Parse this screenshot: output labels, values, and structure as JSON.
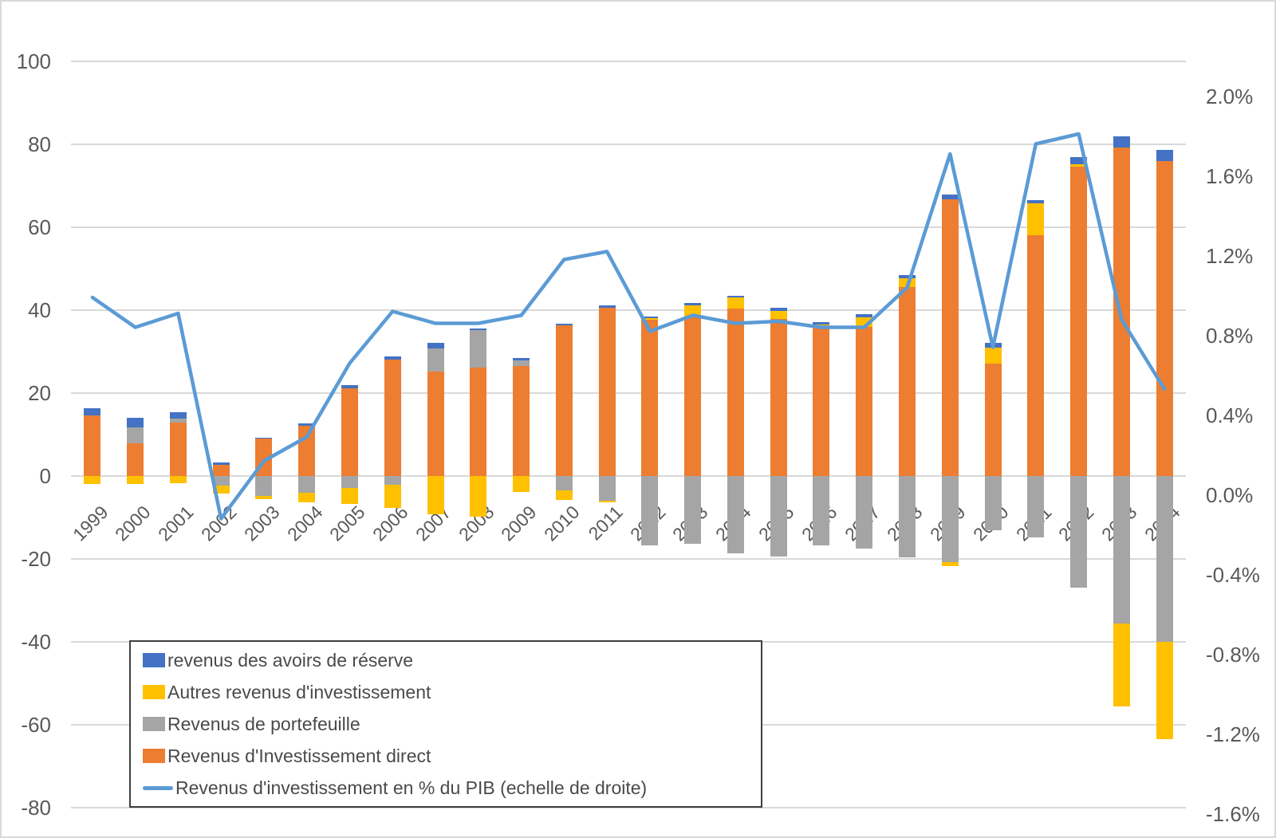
{
  "chart_data": {
    "type": "combo-stacked-bar-line",
    "categories": [
      1999,
      2000,
      2001,
      2002,
      2003,
      2004,
      2005,
      2006,
      2007,
      2008,
      2009,
      2010,
      2011,
      2012,
      2013,
      2014,
      2015,
      2016,
      2017,
      2018,
      2019,
      2020,
      2021,
      2022,
      2023,
      2024
    ],
    "series": [
      {
        "key": "direct",
        "name": "Revenus d'Investissement direct",
        "type": "bar",
        "color": "#ED7D31",
        "values": [
          14.6,
          7.9,
          12.8,
          2.6,
          9.0,
          12.2,
          21.2,
          28.0,
          25.2,
          26.2,
          26.5,
          36.4,
          40.6,
          37.7,
          38.5,
          40.4,
          37.8,
          36.3,
          36.0,
          45.5,
          66.8,
          27.2,
          58.1,
          74.6,
          79.2,
          76.0
        ]
      },
      {
        "key": "portefeuille",
        "name": "Revenus de portefeuille",
        "type": "bar",
        "color": "#A5A5A5",
        "values": [
          0,
          3.9,
          1.1,
          -2.4,
          -4.8,
          -4.0,
          -2.8,
          -2.1,
          5.5,
          9.0,
          1.4,
          -3.5,
          -6.0,
          -16.8,
          -16.3,
          -18.6,
          -19.4,
          -16.8,
          -17.5,
          -19.7,
          -20.7,
          -13.1,
          -14.8,
          -27.0,
          -35.5,
          -40.0
        ]
      },
      {
        "key": "autres",
        "name": "Autres revenus d'investissement",
        "type": "bar",
        "color": "#FFC000",
        "values": [
          -2.0,
          -1.9,
          -1.8,
          -1.9,
          -0.8,
          -2.3,
          -4.0,
          -5.5,
          -9.2,
          -9.8,
          -3.8,
          -2.2,
          -0.4,
          0.4,
          2.7,
          2.6,
          2.1,
          0.2,
          2.2,
          2.1,
          -1.0,
          3.7,
          7.6,
          0.5,
          -20.0,
          -23.5
        ]
      },
      {
        "key": "reserve",
        "name": "revenus des avoirs de réserve",
        "type": "bar",
        "color": "#4472C4",
        "values": [
          1.8,
          2.3,
          1.5,
          0.6,
          0.3,
          0.4,
          0.8,
          0.9,
          1.5,
          0.4,
          0.5,
          0.4,
          0.6,
          0.3,
          0.5,
          0.5,
          0.7,
          0.6,
          0.8,
          0.9,
          1.0,
          1.3,
          0.8,
          1.8,
          2.8,
          2.6
        ]
      },
      {
        "key": "pib_line",
        "name": "Revenus d'investissement en % du PIB (echelle de droite)",
        "type": "line",
        "axis": "right",
        "color": "#5B9BD5",
        "values": [
          0.99,
          0.84,
          0.91,
          -0.12,
          0.17,
          0.29,
          0.66,
          0.92,
          0.86,
          0.86,
          0.9,
          1.18,
          1.22,
          0.82,
          0.9,
          0.86,
          0.87,
          0.84,
          0.84,
          1.04,
          1.71,
          0.74,
          1.76,
          1.81,
          0.88,
          0.53
        ]
      }
    ],
    "left_axis": {
      "ticks": [
        100,
        80,
        60,
        40,
        20,
        0,
        -20,
        -40,
        -60,
        -80
      ],
      "range": [
        -80,
        100
      ],
      "grid": true
    },
    "right_axis": {
      "ticks": [
        "2.0%",
        "1.6%",
        "1.2%",
        "0.8%",
        "0.4%",
        "0.0%",
        "-0.4%",
        "-0.8%",
        "-1.2%",
        "-1.6%"
      ],
      "range_pct": [
        -1.6,
        2.0
      ]
    },
    "legend_position": "bottom-left-box"
  },
  "legend": {
    "items": [
      {
        "label": "revenus des avoirs de réserve",
        "swatch": "bar",
        "color": "#4472C4"
      },
      {
        "label": "Autres revenus d'investissement",
        "swatch": "bar",
        "color": "#FFC000"
      },
      {
        "label": "Revenus de portefeuille",
        "swatch": "bar",
        "color": "#A5A5A5"
      },
      {
        "label": "Revenus d'Investissement direct",
        "swatch": "bar",
        "color": "#ED7D31"
      },
      {
        "label": "Revenus d'investissement en % du PIB (echelle de droite)",
        "swatch": "line",
        "color": "#5B9BD5"
      }
    ]
  },
  "colors": {
    "grid": "#D9D9D9",
    "axis_text": "#595959",
    "legend_border": "#3F3F3F"
  }
}
